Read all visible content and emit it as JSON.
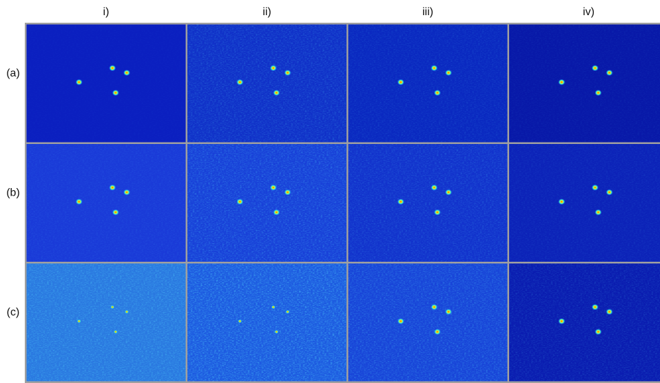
{
  "columns": [
    "i)",
    "ii)",
    "iii)",
    "iv)"
  ],
  "rows": [
    "(a)",
    "(b)",
    "(c)"
  ]
}
